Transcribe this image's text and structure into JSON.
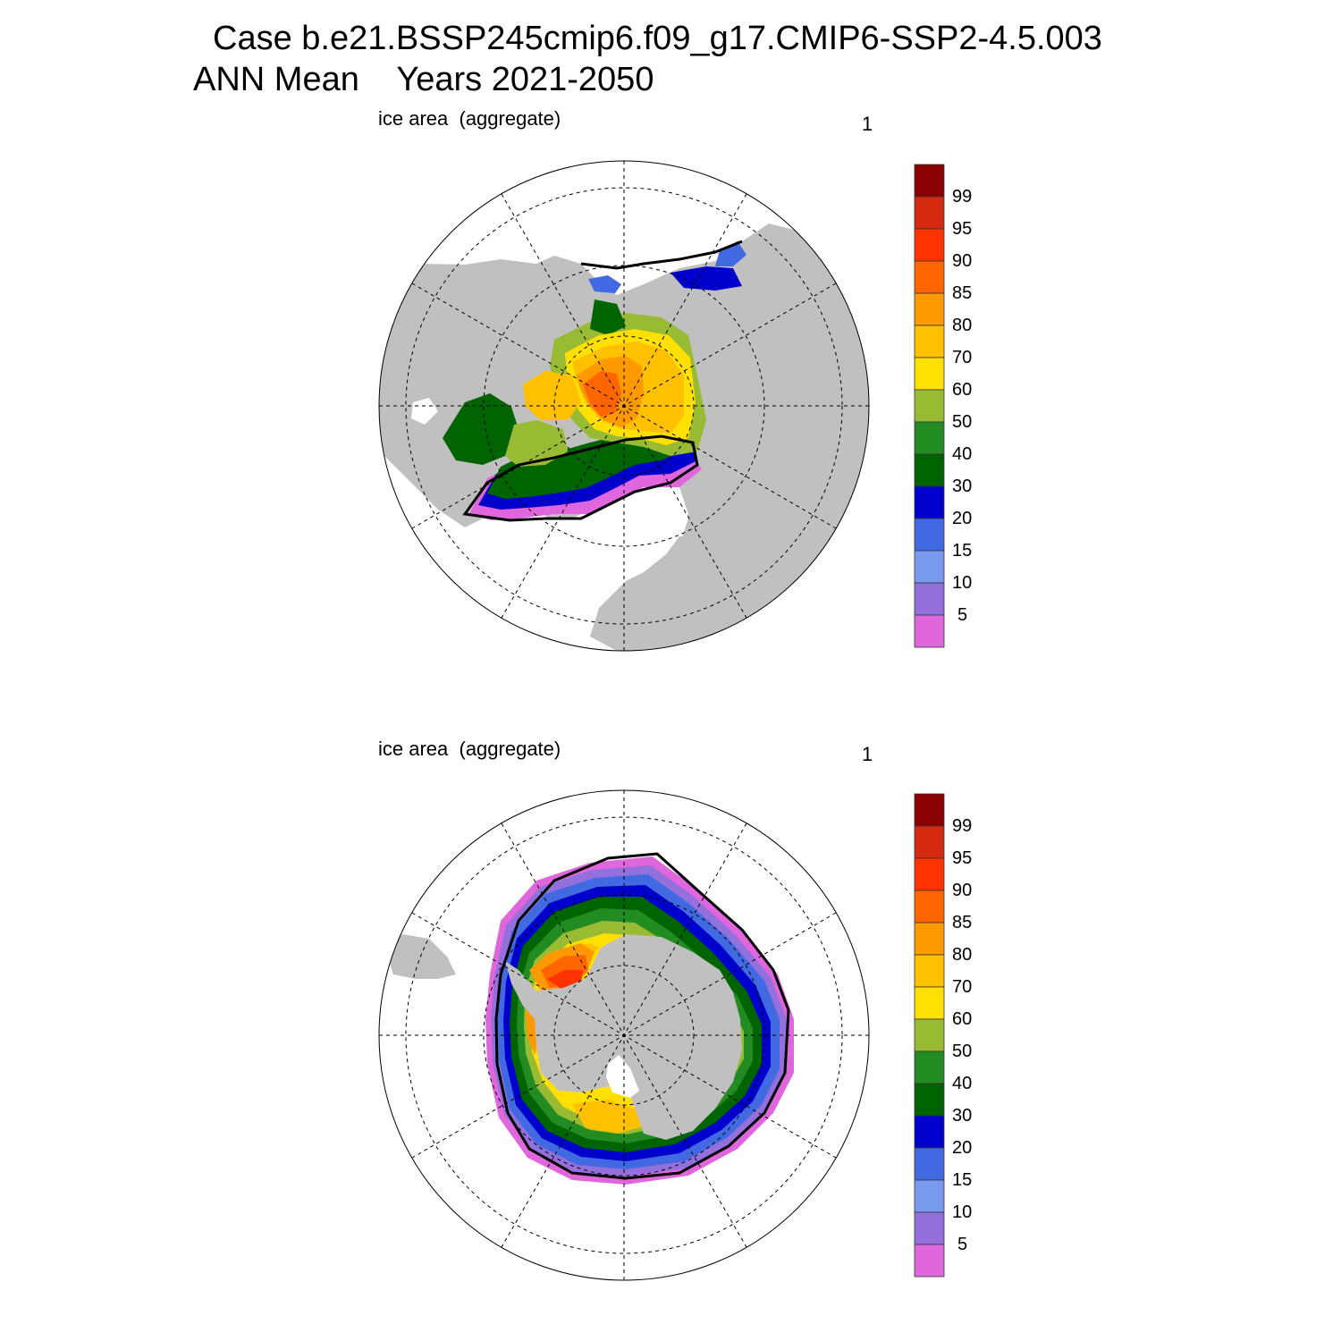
{
  "header": {
    "line1": "Case b.e21.BSSP245cmip6.f09_g17.CMIP6-SSP2-4.5.003",
    "line2": "ANN Mean    Years 2021-2050"
  },
  "panels": [
    {
      "id": "north",
      "hemisphere": "Northern Hemisphere polar stereographic",
      "left_label": "ice area  (aggregate)",
      "right_label": "1"
    },
    {
      "id": "south",
      "hemisphere": "Southern Hemisphere polar stereographic",
      "left_label": "ice area  (aggregate)",
      "right_label": "1"
    }
  ],
  "colorbar": {
    "levels": [
      5,
      10,
      15,
      20,
      30,
      40,
      50,
      60,
      70,
      80,
      85,
      90,
      95,
      99
    ],
    "labels": [
      "99",
      "95",
      "90",
      "85",
      "80",
      "70",
      "60",
      "50",
      "40",
      "30",
      "20",
      "15",
      "10",
      "5"
    ],
    "colors": [
      "#8b0000",
      "#d62a10",
      "#ff3300",
      "#ff6600",
      "#ff9900",
      "#ffc000",
      "#ffe000",
      "#99bb33",
      "#228b22",
      "#006400",
      "#0000cd",
      "#4169e1",
      "#7799ee",
      "#9370db",
      "#e066dd"
    ]
  },
  "colors": {
    "land": "#c0c0c0",
    "ocean": "#ffffff",
    "ice_edge": "#000000"
  }
}
